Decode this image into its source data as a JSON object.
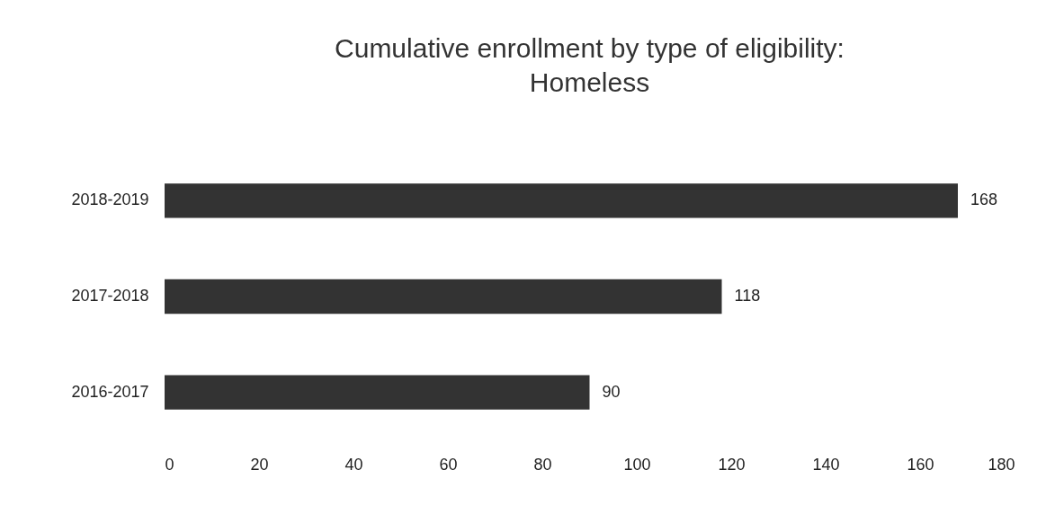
{
  "chart_data": {
    "type": "bar",
    "orientation": "horizontal",
    "title": "Cumulative enrollment by type of eligibility:\nHomeless",
    "categories": [
      "2018-2019",
      "2017-2018",
      "2016-2017"
    ],
    "values": [
      168,
      118,
      90
    ],
    "color": "#333333",
    "xlim": [
      0,
      180
    ],
    "xticks": [
      0,
      20,
      40,
      60,
      80,
      100,
      120,
      140,
      160,
      180
    ],
    "data_labels": true,
    "grid": false
  }
}
